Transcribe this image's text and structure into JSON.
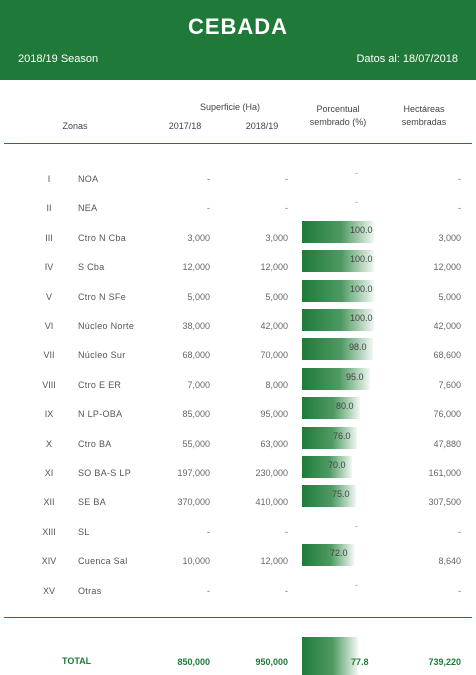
{
  "header": {
    "title": "CEBADA",
    "season": "2018/19 Season",
    "as_of": "Datos al: 18/07/2018"
  },
  "columns": {
    "zonas": "Zonas",
    "superficie": "Superficie (Ha)",
    "y1": "2017/18",
    "y2": "2018/19",
    "pct_line1": "Porcentual",
    "pct_line2": "sembrado (%)",
    "ha_line1": "Hectáreas",
    "ha_line2": "sembradas"
  },
  "colors": {
    "brand_green": "#1f7a3a"
  },
  "rows": [
    {
      "num": "I",
      "zona": "NOA",
      "s2017": "-",
      "s2018": "-",
      "pct": "-",
      "pct_value": null,
      "ha": "-"
    },
    {
      "num": "II",
      "zona": "NEA",
      "s2017": "-",
      "s2018": "-",
      "pct": "-",
      "pct_value": null,
      "ha": "-"
    },
    {
      "num": "III",
      "zona": "Ctro N Cba",
      "s2017": "3,000",
      "s2018": "3,000",
      "pct": "100.0",
      "pct_value": 100.0,
      "ha": "3,000"
    },
    {
      "num": "IV",
      "zona": "S Cba",
      "s2017": "12,000",
      "s2018": "12,000",
      "pct": "100.0",
      "pct_value": 100.0,
      "ha": "12,000"
    },
    {
      "num": "V",
      "zona": "Ctro N SFe",
      "s2017": "5,000",
      "s2018": "5,000",
      "pct": "100.0",
      "pct_value": 100.0,
      "ha": "5,000"
    },
    {
      "num": "VI",
      "zona": "Núcleo Norte",
      "s2017": "38,000",
      "s2018": "42,000",
      "pct": "100.0",
      "pct_value": 100.0,
      "ha": "42,000"
    },
    {
      "num": "VII",
      "zona": "Núcleo Sur",
      "s2017": "68,000",
      "s2018": "70,000",
      "pct": "98.0",
      "pct_value": 98.0,
      "ha": "68,600"
    },
    {
      "num": "VIII",
      "zona": "Ctro E ER",
      "s2017": "7,000",
      "s2018": "8,000",
      "pct": "95.0",
      "pct_value": 95.0,
      "ha": "7,600"
    },
    {
      "num": "IX",
      "zona": "N LP-OBA",
      "s2017": "85,000",
      "s2018": "95,000",
      "pct": "80.0",
      "pct_value": 80.0,
      "ha": "76,000"
    },
    {
      "num": "X",
      "zona": "Ctro BA",
      "s2017": "55,000",
      "s2018": "63,000",
      "pct": "76.0",
      "pct_value": 76.0,
      "ha": "47,880"
    },
    {
      "num": "XI",
      "zona": "SO BA-S LP",
      "s2017": "197,000",
      "s2018": "230,000",
      "pct": "70.0",
      "pct_value": 70.0,
      "ha": "161,000"
    },
    {
      "num": "XII",
      "zona": "SE BA",
      "s2017": "370,000",
      "s2018": "410,000",
      "pct": "75.0",
      "pct_value": 75.0,
      "ha": "307,500"
    },
    {
      "num": "XIII",
      "zona": "SL",
      "s2017": "-",
      "s2018": "-",
      "pct": "-",
      "pct_value": null,
      "ha": "-"
    },
    {
      "num": "XIV",
      "zona": "Cuenca Sal",
      "s2017": "10,000",
      "s2018": "12,000",
      "pct": "72.0",
      "pct_value": 72.0,
      "ha": "8,640"
    },
    {
      "num": "XV",
      "zona": "Otras",
      "s2017": "-",
      "s2018": "-",
      "pct": "-",
      "pct_value": null,
      "ha": "-"
    }
  ],
  "total": {
    "label": "TOTAL",
    "s2017": "850,000",
    "s2018": "950,000",
    "pct": "77.8",
    "pct_value": 77.8,
    "ha": "739,220"
  }
}
